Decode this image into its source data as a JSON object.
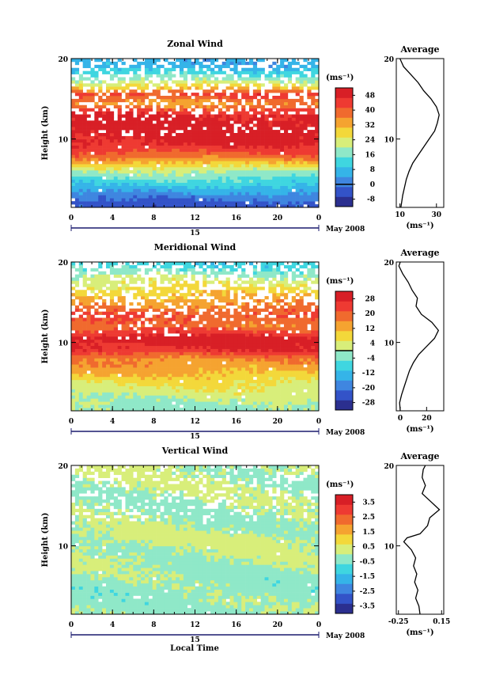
{
  "figure": {
    "x_axis_label": "Local Time",
    "date_label": "May 2008",
    "day_label": "15",
    "x_ticks": [
      "0",
      "4",
      "8",
      "12",
      "16",
      "20",
      "0"
    ]
  },
  "chart_data": [
    {
      "type": "heatmap",
      "title": "Zonal Wind",
      "xlabel": "Local Time",
      "ylabel": "Height (km)",
      "xlim": [
        0,
        24
      ],
      "ylim": [
        1.5,
        20
      ],
      "y_ticks": [
        "10",
        "20"
      ],
      "colorbar_unit": "(ms⁻¹)",
      "colorbar_ticks": [
        "-8",
        "0",
        "8",
        "16",
        "24",
        "32",
        "40",
        "48"
      ],
      "colorbar_range": [
        -12,
        52
      ],
      "zero_line": 0,
      "profile_rows": [
        {
          "h": 2,
          "v": -4
        },
        {
          "h": 4,
          "v": 8
        },
        {
          "h": 6,
          "v": 20
        },
        {
          "h": 8,
          "v": 40
        },
        {
          "h": 9.5,
          "v": 48
        },
        {
          "h": 11,
          "v": 50
        },
        {
          "h": 13,
          "v": 48
        },
        {
          "h": 14.5,
          "v": 34
        },
        {
          "h": 15.5,
          "v": 44
        },
        {
          "h": 16.5,
          "v": 28
        },
        {
          "h": 17.5,
          "v": 18
        },
        {
          "h": 19,
          "v": 6
        }
      ],
      "inset": {
        "title": "Average",
        "xlabel": "(ms⁻¹)",
        "x_ticks": [
          "10",
          "30"
        ],
        "x_tick_values": [
          10,
          30
        ],
        "xlim": [
          8,
          34
        ],
        "ylim": [
          1.5,
          20
        ],
        "profile": [
          {
            "h": 1.5,
            "v": 10.5
          },
          {
            "h": 3,
            "v": 11.5
          },
          {
            "h": 4,
            "v": 12.5
          },
          {
            "h": 5,
            "v": 13.5
          },
          {
            "h": 6,
            "v": 15
          },
          {
            "h": 7,
            "v": 17
          },
          {
            "h": 8,
            "v": 20
          },
          {
            "h": 9,
            "v": 23
          },
          {
            "h": 10,
            "v": 26
          },
          {
            "h": 11,
            "v": 29
          },
          {
            "h": 12,
            "v": 30.5
          },
          {
            "h": 13,
            "v": 31.5
          },
          {
            "h": 14,
            "v": 30
          },
          {
            "h": 15,
            "v": 27
          },
          {
            "h": 16,
            "v": 23
          },
          {
            "h": 17,
            "v": 20
          },
          {
            "h": 18,
            "v": 16
          },
          {
            "h": 19,
            "v": 12
          },
          {
            "h": 20,
            "v": 10
          }
        ]
      }
    },
    {
      "type": "heatmap",
      "title": "Meridional Wind",
      "xlabel": "Local Time",
      "ylabel": "Height (km)",
      "xlim": [
        0,
        24
      ],
      "ylim": [
        1.5,
        20
      ],
      "y_ticks": [
        "10",
        "20"
      ],
      "colorbar_unit": "(ms⁻¹)",
      "colorbar_ticks": [
        "-28",
        "-20",
        "-12",
        "-4",
        "4",
        "12",
        "20",
        "28"
      ],
      "colorbar_range": [
        -32,
        32
      ],
      "zero_line": 0,
      "profile_rows": [
        {
          "h": 2,
          "v": -2
        },
        {
          "h": 3.5,
          "v": 2
        },
        {
          "h": 5,
          "v": 6
        },
        {
          "h": 6.5,
          "v": 12
        },
        {
          "h": 8,
          "v": 16
        },
        {
          "h": 9,
          "v": 26
        },
        {
          "h": 10.5,
          "v": 30
        },
        {
          "h": 12,
          "v": 18
        },
        {
          "h": 13.5,
          "v": 22
        },
        {
          "h": 15,
          "v": 14
        },
        {
          "h": 16.5,
          "v": 8
        },
        {
          "h": 18,
          "v": 2
        },
        {
          "h": 19.5,
          "v": -8
        }
      ],
      "inset": {
        "title": "Average",
        "xlabel": "(ms⁻¹)",
        "x_ticks": [
          "0",
          "20"
        ],
        "x_tick_values": [
          0,
          20
        ],
        "xlim": [
          -3,
          33
        ],
        "ylim": [
          1.5,
          20
        ],
        "profile": [
          {
            "h": 1.5,
            "v": 0
          },
          {
            "h": 2.5,
            "v": -0.5
          },
          {
            "h": 3.5,
            "v": 1
          },
          {
            "h": 4.5,
            "v": 3
          },
          {
            "h": 5.5,
            "v": 5
          },
          {
            "h": 6.5,
            "v": 7
          },
          {
            "h": 7.5,
            "v": 10
          },
          {
            "h": 8.5,
            "v": 14
          },
          {
            "h": 9.5,
            "v": 20
          },
          {
            "h": 10.5,
            "v": 26
          },
          {
            "h": 11.5,
            "v": 29
          },
          {
            "h": 12.5,
            "v": 24
          },
          {
            "h": 13.5,
            "v": 16
          },
          {
            "h": 14.5,
            "v": 12
          },
          {
            "h": 15.5,
            "v": 13
          },
          {
            "h": 16.5,
            "v": 9
          },
          {
            "h": 17.5,
            "v": 6
          },
          {
            "h": 18.5,
            "v": 2
          },
          {
            "h": 19.5,
            "v": -1
          },
          {
            "h": 20,
            "v": 0
          }
        ]
      }
    },
    {
      "type": "heatmap",
      "title": "Vertical Wind",
      "xlabel": "Local Time",
      "ylabel": "Height (km)",
      "xlim": [
        0,
        24
      ],
      "ylim": [
        1.5,
        20
      ],
      "y_ticks": [
        "10",
        "20"
      ],
      "colorbar_unit": "(ms⁻¹)",
      "colorbar_ticks": [
        "-3.5",
        "-2.5",
        "-1.5",
        "-0.5",
        "0.5",
        "1.5",
        "2.5",
        "3.5"
      ],
      "colorbar_range": [
        -4,
        4
      ],
      "zero_line": null,
      "profile_rows": [
        {
          "h": 2,
          "v": -0.2
        },
        {
          "h": 5,
          "v": -0.3
        },
        {
          "h": 8,
          "v": 0
        },
        {
          "h": 11,
          "v": 0.1
        },
        {
          "h": 14,
          "v": -0.1
        },
        {
          "h": 17,
          "v": 0
        },
        {
          "h": 19.5,
          "v": 0.1
        }
      ],
      "inset": {
        "title": "Average",
        "xlabel": "(ms⁻¹)",
        "x_ticks": [
          "-0.25",
          "0.15"
        ],
        "x_tick_values": [
          -0.25,
          0.15
        ],
        "xlim": [
          -0.27,
          0.17
        ],
        "ylim": [
          1.5,
          20
        ],
        "profile": [
          {
            "h": 1.5,
            "v": -0.05
          },
          {
            "h": 2.5,
            "v": -0.06
          },
          {
            "h": 3.5,
            "v": -0.09
          },
          {
            "h": 4.5,
            "v": -0.07
          },
          {
            "h": 5.5,
            "v": -0.1
          },
          {
            "h": 6.5,
            "v": -0.08
          },
          {
            "h": 7.5,
            "v": -0.11
          },
          {
            "h": 8.5,
            "v": -0.09
          },
          {
            "h": 9.5,
            "v": -0.13
          },
          {
            "h": 10.5,
            "v": -0.2
          },
          {
            "h": 11,
            "v": -0.17
          },
          {
            "h": 11.5,
            "v": -0.05
          },
          {
            "h": 12.5,
            "v": 0.02
          },
          {
            "h": 13.5,
            "v": 0.04
          },
          {
            "h": 14.5,
            "v": 0.13
          },
          {
            "h": 15.5,
            "v": 0.05
          },
          {
            "h": 16.5,
            "v": -0.03
          },
          {
            "h": 17.5,
            "v": 0.0
          },
          {
            "h": 18.5,
            "v": -0.03
          },
          {
            "h": 19.5,
            "v": -0.02
          },
          {
            "h": 20,
            "v": 0.0
          }
        ]
      }
    }
  ]
}
